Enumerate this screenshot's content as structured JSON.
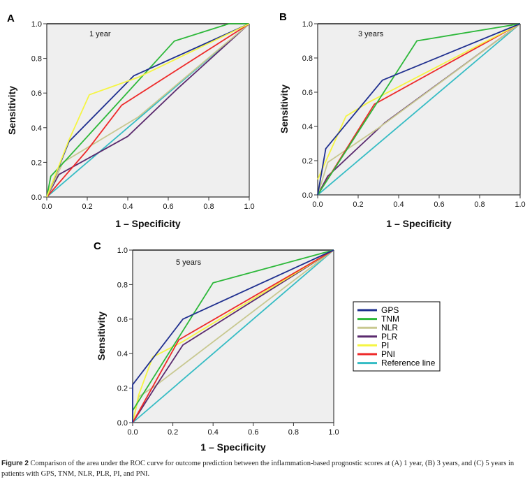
{
  "legend": {
    "placement": "right-of-panel-C",
    "entries": [
      {
        "name": "GPS",
        "color": "#1f2f8f"
      },
      {
        "name": "TNM",
        "color": "#2db83a"
      },
      {
        "name": "NLR",
        "color": "#c8c890"
      },
      {
        "name": "PLR",
        "color": "#5a2a6e"
      },
      {
        "name": "PI",
        "color": "#f5f542"
      },
      {
        "name": "PNI",
        "color": "#ee2a2a"
      },
      {
        "name": "Reference line",
        "color": "#35bcc4"
      }
    ]
  },
  "caption": {
    "label": "Figure 2",
    "text": " Comparison of the area under the ROC curve for outcome prediction between the inflammation-based prognostic scores at (A) 1 year, (B) 3 years, and (C) 5 years in patients with GPS, TNM, NLR, PLR, PI, and PNI."
  },
  "chart_data": [
    {
      "type": "line",
      "panel": "A",
      "annotation": "1 year",
      "title": "",
      "xlabel": "1 – Specificity",
      "ylabel": "Sensitivity",
      "xlim": [
        0,
        1
      ],
      "ylim": [
        0,
        1
      ],
      "xticks": [
        "0.0",
        "0.2",
        "0.4",
        "0.6",
        "0.8",
        "1.0"
      ],
      "yticks": [
        "0.0",
        "0.2",
        "0.4",
        "0.6",
        "0.8",
        "1.0"
      ],
      "grid": false,
      "series": [
        {
          "name": "Reference line",
          "points": [
            [
              0,
              0
            ],
            [
              1,
              1
            ]
          ]
        },
        {
          "name": "PLR",
          "points": [
            [
              0,
              0
            ],
            [
              0.06,
              0.13
            ],
            [
              0.2,
              0.22
            ],
            [
              0.4,
              0.35
            ],
            [
              0.65,
              0.63
            ],
            [
              1,
              1
            ]
          ]
        },
        {
          "name": "NLR",
          "points": [
            [
              0,
              0
            ],
            [
              0.08,
              0.2
            ],
            [
              0.45,
              0.46
            ],
            [
              1,
              1
            ]
          ]
        },
        {
          "name": "PNI",
          "points": [
            [
              0,
              0
            ],
            [
              0.2,
              0.27
            ],
            [
              0.37,
              0.53
            ],
            [
              1,
              1
            ]
          ]
        },
        {
          "name": "TNM",
          "points": [
            [
              0,
              0
            ],
            [
              0.02,
              0.12
            ],
            [
              0.1,
              0.22
            ],
            [
              0.63,
              0.9
            ],
            [
              0.9,
              1.0
            ],
            [
              1,
              1
            ]
          ]
        },
        {
          "name": "GPS",
          "points": [
            [
              0,
              0
            ],
            [
              0.11,
              0.32
            ],
            [
              0.43,
              0.7
            ],
            [
              1,
              1
            ]
          ]
        },
        {
          "name": "PI",
          "points": [
            [
              0,
              0
            ],
            [
              0.11,
              0.33
            ],
            [
              0.21,
              0.59
            ],
            [
              0.45,
              0.69
            ],
            [
              1,
              1
            ]
          ]
        }
      ]
    },
    {
      "type": "line",
      "panel": "B",
      "annotation": "3 years",
      "title": "",
      "xlabel": "1 – Specificity",
      "ylabel": "Sensitivity",
      "xlim": [
        0,
        1
      ],
      "ylim": [
        0,
        1
      ],
      "xticks": [
        "0.0",
        "0.2",
        "0.4",
        "0.6",
        "0.8",
        "1.0"
      ],
      "yticks": [
        "0.0",
        "0.2",
        "0.4",
        "0.6",
        "0.8",
        "1.0"
      ],
      "grid": false,
      "series": [
        {
          "name": "Reference line",
          "points": [
            [
              0,
              0
            ],
            [
              1,
              1
            ]
          ]
        },
        {
          "name": "PLR",
          "points": [
            [
              0,
              0
            ],
            [
              0.05,
              0.11
            ],
            [
              0.33,
              0.42
            ],
            [
              1,
              1
            ]
          ]
        },
        {
          "name": "NLR",
          "points": [
            [
              0,
              0
            ],
            [
              0.05,
              0.19
            ],
            [
              0.3,
              0.39
            ],
            [
              1,
              1
            ]
          ]
        },
        {
          "name": "PNI",
          "points": [
            [
              0,
              0
            ],
            [
              0.28,
              0.53
            ],
            [
              1,
              1
            ]
          ]
        },
        {
          "name": "PI",
          "points": [
            [
              0,
              0.09
            ],
            [
              0.14,
              0.46
            ],
            [
              0.25,
              0.54
            ],
            [
              1,
              1
            ]
          ]
        },
        {
          "name": "TNM",
          "points": [
            [
              0,
              0
            ],
            [
              0.49,
              0.9
            ],
            [
              1,
              1
            ]
          ]
        },
        {
          "name": "GPS",
          "points": [
            [
              0,
              0
            ],
            [
              0.04,
              0.27
            ],
            [
              0.32,
              0.67
            ],
            [
              1,
              1
            ]
          ]
        }
      ]
    },
    {
      "type": "line",
      "panel": "C",
      "annotation": "5 years",
      "title": "",
      "xlabel": "1 – Specificity",
      "ylabel": "Sensitivity",
      "xlim": [
        0,
        1
      ],
      "ylim": [
        0,
        1
      ],
      "xticks": [
        "0.0",
        "0.2",
        "0.4",
        "0.6",
        "0.8",
        "1.0"
      ],
      "yticks": [
        "0.0",
        "0.2",
        "0.4",
        "0.6",
        "0.8",
        "1.0"
      ],
      "grid": false,
      "series": [
        {
          "name": "Reference line",
          "points": [
            [
              0,
              0
            ],
            [
              1,
              1
            ]
          ]
        },
        {
          "name": "NLR",
          "points": [
            [
              0,
              0
            ],
            [
              0.03,
              0.15
            ],
            [
              0.12,
              0.22
            ],
            [
              1,
              1
            ]
          ]
        },
        {
          "name": "PLR",
          "points": [
            [
              0,
              0
            ],
            [
              0.12,
              0.22
            ],
            [
              0.25,
              0.45
            ],
            [
              1,
              1
            ]
          ]
        },
        {
          "name": "PI",
          "points": [
            [
              0,
              0
            ],
            [
              0.03,
              0.16
            ],
            [
              0.1,
              0.38
            ],
            [
              0.25,
              0.47
            ],
            [
              1,
              1
            ]
          ]
        },
        {
          "name": "PNI",
          "points": [
            [
              0,
              0
            ],
            [
              0.23,
              0.48
            ],
            [
              1,
              1
            ]
          ]
        },
        {
          "name": "TNM",
          "points": [
            [
              0,
              0.07
            ],
            [
              0.4,
              0.81
            ],
            [
              1,
              1
            ]
          ]
        },
        {
          "name": "GPS",
          "points": [
            [
              0,
              0
            ],
            [
              0,
              0.22
            ],
            [
              0.25,
              0.6
            ],
            [
              1,
              1
            ]
          ]
        }
      ]
    }
  ]
}
